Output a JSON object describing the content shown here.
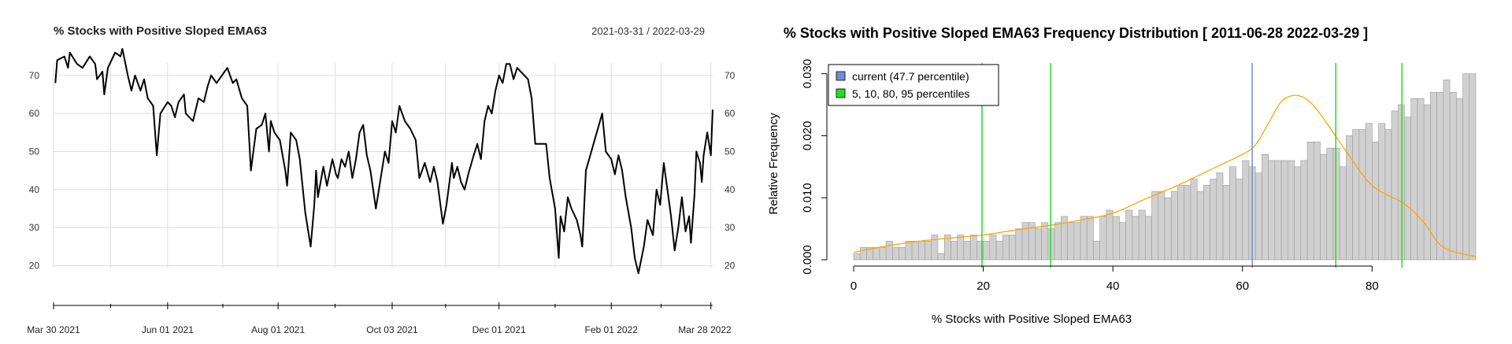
{
  "line_chart": {
    "title": "% Stocks with Positive Sloped EMA63",
    "date_range": "2021-03-31 / 2022-03-29"
  },
  "histogram": {
    "title": "% Stocks with Positive Sloped EMA63 Frequency Distribution [ 2011-06-28 2022-03-29 ]",
    "xlabel": "% Stocks with Positive Sloped EMA63",
    "ylabel": "Relative Frequency",
    "legend": [
      {
        "label": "current (47.7 percentile)",
        "color": "#6f8fd8"
      },
      {
        "label": "5, 10, 80, 95 percentiles",
        "color": "#22dd22"
      }
    ]
  },
  "colors": {
    "line": "#000000",
    "grid": "#dddddd",
    "bar_fill": "#d0d0d0",
    "bar_stroke": "#9a9a9a",
    "density": "#ffa500",
    "current": "#6f8fd8",
    "percentile": "#22dd22"
  },
  "chart_data": [
    {
      "type": "line",
      "title": "% Stocks with Positive Sloped EMA63",
      "ylim": [
        17,
        77
      ],
      "y_ticks": [
        20,
        30,
        40,
        50,
        60,
        70
      ],
      "x_ticks": [
        {
          "date": "2021-03-30",
          "label": "Mar 30 2021"
        },
        {
          "date": "2021-06-01",
          "label": "Jun 01 2021"
        },
        {
          "date": "2021-08-01",
          "label": "Aug 01 2021"
        },
        {
          "date": "2021-10-03",
          "label": "Oct 03 2021"
        },
        {
          "date": "2021-12-01",
          "label": "Dec 01 2021"
        },
        {
          "date": "2022-02-01",
          "label": "Feb 01 2022"
        },
        {
          "date": "2022-03-28",
          "label": "Mar 28 2022"
        }
      ],
      "grid": true,
      "series": [
        {
          "values": [
            {
              "x": "2021-03-31",
              "y": 68
            },
            {
              "x": "2021-04-01",
              "y": 74
            },
            {
              "x": "2021-04-05",
              "y": 75
            },
            {
              "x": "2021-04-07",
              "y": 72
            },
            {
              "x": "2021-04-08",
              "y": 76
            },
            {
              "x": "2021-04-12",
              "y": 73
            },
            {
              "x": "2021-04-15",
              "y": 72
            },
            {
              "x": "2021-04-19",
              "y": 75
            },
            {
              "x": "2021-04-22",
              "y": 73
            },
            {
              "x": "2021-04-23",
              "y": 69
            },
            {
              "x": "2021-04-26",
              "y": 71
            },
            {
              "x": "2021-04-27",
              "y": 65
            },
            {
              "x": "2021-04-29",
              "y": 72
            },
            {
              "x": "2021-05-03",
              "y": 76
            },
            {
              "x": "2021-05-06",
              "y": 75
            },
            {
              "x": "2021-05-07",
              "y": 77
            },
            {
              "x": "2021-05-10",
              "y": 70
            },
            {
              "x": "2021-05-12",
              "y": 66
            },
            {
              "x": "2021-05-14",
              "y": 70
            },
            {
              "x": "2021-05-17",
              "y": 66
            },
            {
              "x": "2021-05-19",
              "y": 69
            },
            {
              "x": "2021-05-21",
              "y": 64
            },
            {
              "x": "2021-05-24",
              "y": 62
            },
            {
              "x": "2021-05-26",
              "y": 49
            },
            {
              "x": "2021-05-28",
              "y": 60
            },
            {
              "x": "2021-06-01",
              "y": 63
            },
            {
              "x": "2021-06-03",
              "y": 62
            },
            {
              "x": "2021-06-05",
              "y": 59
            },
            {
              "x": "2021-06-07",
              "y": 63
            },
            {
              "x": "2021-06-10",
              "y": 65
            },
            {
              "x": "2021-06-11",
              "y": 60
            },
            {
              "x": "2021-06-15",
              "y": 58
            },
            {
              "x": "2021-06-18",
              "y": 64
            },
            {
              "x": "2021-06-21",
              "y": 63
            },
            {
              "x": "2021-06-23",
              "y": 67
            },
            {
              "x": "2021-06-25",
              "y": 70
            },
            {
              "x": "2021-06-28",
              "y": 68
            },
            {
              "x": "2021-07-01",
              "y": 70
            },
            {
              "x": "2021-07-04",
              "y": 72
            },
            {
              "x": "2021-07-07",
              "y": 68
            },
            {
              "x": "2021-07-09",
              "y": 69
            },
            {
              "x": "2021-07-12",
              "y": 64
            },
            {
              "x": "2021-07-15",
              "y": 62
            },
            {
              "x": "2021-07-17",
              "y": 45
            },
            {
              "x": "2021-07-20",
              "y": 56
            },
            {
              "x": "2021-07-23",
              "y": 57
            },
            {
              "x": "2021-07-25",
              "y": 60
            },
            {
              "x": "2021-07-27",
              "y": 50
            },
            {
              "x": "2021-07-28",
              "y": 58
            },
            {
              "x": "2021-07-30",
              "y": 55
            },
            {
              "x": "2021-08-02",
              "y": 53
            },
            {
              "x": "2021-08-05",
              "y": 45
            },
            {
              "x": "2021-08-06",
              "y": 41
            },
            {
              "x": "2021-08-08",
              "y": 55
            },
            {
              "x": "2021-08-11",
              "y": 53
            },
            {
              "x": "2021-08-13",
              "y": 48
            },
            {
              "x": "2021-08-16",
              "y": 34
            },
            {
              "x": "2021-08-19",
              "y": 25
            },
            {
              "x": "2021-08-21",
              "y": 36
            },
            {
              "x": "2021-08-22",
              "y": 45
            },
            {
              "x": "2021-08-23",
              "y": 38
            },
            {
              "x": "2021-08-26",
              "y": 46
            },
            {
              "x": "2021-08-28",
              "y": 41
            },
            {
              "x": "2021-08-31",
              "y": 48
            },
            {
              "x": "2021-09-02",
              "y": 44
            },
            {
              "x": "2021-09-03",
              "y": 43
            },
            {
              "x": "2021-09-05",
              "y": 48
            },
            {
              "x": "2021-09-07",
              "y": 46
            },
            {
              "x": "2021-09-09",
              "y": 50
            },
            {
              "x": "2021-09-11",
              "y": 43
            },
            {
              "x": "2021-09-13",
              "y": 48
            },
            {
              "x": "2021-09-15",
              "y": 55
            },
            {
              "x": "2021-09-17",
              "y": 57
            },
            {
              "x": "2021-09-19",
              "y": 49
            },
            {
              "x": "2021-09-21",
              "y": 45
            },
            {
              "x": "2021-09-24",
              "y": 35
            },
            {
              "x": "2021-09-26",
              "y": 41
            },
            {
              "x": "2021-09-29",
              "y": 50
            },
            {
              "x": "2021-10-01",
              "y": 47
            },
            {
              "x": "2021-10-03",
              "y": 58
            },
            {
              "x": "2021-10-05",
              "y": 55
            },
            {
              "x": "2021-10-07",
              "y": 62
            },
            {
              "x": "2021-10-10",
              "y": 58
            },
            {
              "x": "2021-10-13",
              "y": 56
            },
            {
              "x": "2021-10-16",
              "y": 53
            },
            {
              "x": "2021-10-18",
              "y": 43
            },
            {
              "x": "2021-10-21",
              "y": 47
            },
            {
              "x": "2021-10-24",
              "y": 42
            },
            {
              "x": "2021-10-26",
              "y": 46
            },
            {
              "x": "2021-10-28",
              "y": 42
            },
            {
              "x": "2021-10-31",
              "y": 31
            },
            {
              "x": "2021-11-02",
              "y": 36
            },
            {
              "x": "2021-11-05",
              "y": 47
            },
            {
              "x": "2021-11-06",
              "y": 43
            },
            {
              "x": "2021-11-08",
              "y": 46
            },
            {
              "x": "2021-11-10",
              "y": 42
            },
            {
              "x": "2021-11-12",
              "y": 40
            },
            {
              "x": "2021-11-14",
              "y": 44
            },
            {
              "x": "2021-11-17",
              "y": 49
            },
            {
              "x": "2021-11-19",
              "y": 52
            },
            {
              "x": "2021-11-21",
              "y": 48
            },
            {
              "x": "2021-11-23",
              "y": 58
            },
            {
              "x": "2021-11-25",
              "y": 62
            },
            {
              "x": "2021-11-27",
              "y": 60
            },
            {
              "x": "2021-11-29",
              "y": 66
            },
            {
              "x": "2021-12-01",
              "y": 70
            },
            {
              "x": "2021-12-03",
              "y": 68
            },
            {
              "x": "2021-12-05",
              "y": 73
            },
            {
              "x": "2021-12-07",
              "y": 73
            },
            {
              "x": "2021-12-09",
              "y": 69
            },
            {
              "x": "2021-12-11",
              "y": 72
            },
            {
              "x": "2021-12-13",
              "y": 71
            },
            {
              "x": "2021-12-17",
              "y": 69
            },
            {
              "x": "2021-12-19",
              "y": 64
            },
            {
              "x": "2021-12-21",
              "y": 52
            },
            {
              "x": "2021-12-27",
              "y": 52
            },
            {
              "x": "2021-12-29",
              "y": 43
            },
            {
              "x": "2022-01-01",
              "y": 35
            },
            {
              "x": "2022-01-03",
              "y": 22
            },
            {
              "x": "2022-01-04",
              "y": 33
            },
            {
              "x": "2022-01-06",
              "y": 29
            },
            {
              "x": "2022-01-08",
              "y": 38
            },
            {
              "x": "2022-01-10",
              "y": 35
            },
            {
              "x": "2022-01-13",
              "y": 32
            },
            {
              "x": "2022-01-15",
              "y": 28
            },
            {
              "x": "2022-01-16",
              "y": 25
            },
            {
              "x": "2022-01-18",
              "y": 45
            },
            {
              "x": "2022-01-21",
              "y": 50
            },
            {
              "x": "2022-01-24",
              "y": 55
            },
            {
              "x": "2022-01-27",
              "y": 60
            },
            {
              "x": "2022-01-29",
              "y": 50
            },
            {
              "x": "2022-02-01",
              "y": 48
            },
            {
              "x": "2022-02-03",
              "y": 44
            },
            {
              "x": "2022-02-05",
              "y": 49
            },
            {
              "x": "2022-02-07",
              "y": 45
            },
            {
              "x": "2022-02-09",
              "y": 38
            },
            {
              "x": "2022-02-12",
              "y": 30
            },
            {
              "x": "2022-02-14",
              "y": 22
            },
            {
              "x": "2022-02-16",
              "y": 18
            },
            {
              "x": "2022-02-19",
              "y": 25
            },
            {
              "x": "2022-02-21",
              "y": 32
            },
            {
              "x": "2022-02-24",
              "y": 28
            },
            {
              "x": "2022-02-26",
              "y": 40
            },
            {
              "x": "2022-02-28",
              "y": 36
            },
            {
              "x": "2022-03-02",
              "y": 47
            },
            {
              "x": "2022-03-04",
              "y": 40
            },
            {
              "x": "2022-03-06",
              "y": 33
            },
            {
              "x": "2022-03-08",
              "y": 24
            },
            {
              "x": "2022-03-10",
              "y": 30
            },
            {
              "x": "2022-03-12",
              "y": 38
            },
            {
              "x": "2022-03-14",
              "y": 29
            },
            {
              "x": "2022-03-16",
              "y": 33
            },
            {
              "x": "2022-03-17",
              "y": 26
            },
            {
              "x": "2022-03-19",
              "y": 39
            },
            {
              "x": "2022-03-20",
              "y": 50
            },
            {
              "x": "2022-03-22",
              "y": 47
            },
            {
              "x": "2022-03-23",
              "y": 42
            },
            {
              "x": "2022-03-24",
              "y": 49
            },
            {
              "x": "2022-03-26",
              "y": 55
            },
            {
              "x": "2022-03-28",
              "y": 49
            },
            {
              "x": "2022-03-29",
              "y": 61
            }
          ]
        }
      ]
    },
    {
      "type": "bar",
      "title": "% Stocks with Positive Sloped EMA63 Frequency Distribution [ 2011-06-28 2022-03-29 ]",
      "xlabel": "% Stocks with Positive Sloped EMA63",
      "ylabel": "Relative Frequency",
      "xlim": [
        0,
        96
      ],
      "ylim": [
        0,
        0.033
      ],
      "x_ticks": [
        0,
        20,
        40,
        60,
        80
      ],
      "y_ticks": [
        0.0,
        0.01,
        0.02,
        0.03
      ],
      "bin_width": 1,
      "bin_start": 0,
      "values": [
        0.001,
        0.002,
        0.002,
        0.002,
        0.002,
        0.003,
        0.002,
        0.002,
        0.003,
        0.003,
        0.003,
        0.003,
        0.004,
        0.001,
        0.004,
        0.003,
        0.004,
        0.003,
        0.004,
        0.003,
        0.003,
        0.004,
        0.003,
        0.004,
        0.004,
        0.005,
        0.006,
        0.006,
        0.005,
        0.006,
        0.005,
        0.006,
        0.007,
        0.006,
        0.006,
        0.007,
        0.007,
        0.003,
        0.007,
        0.008,
        0.007,
        0.006,
        0.008,
        0.007,
        0.008,
        0.007,
        0.011,
        0.011,
        0.01,
        0.011,
        0.012,
        0.012,
        0.013,
        0.011,
        0.012,
        0.013,
        0.014,
        0.012,
        0.015,
        0.013,
        0.016,
        0.015,
        0.014,
        0.017,
        0.016,
        0.016,
        0.016,
        0.016,
        0.015,
        0.016,
        0.019,
        0.019,
        0.017,
        0.018,
        0.018,
        0.015,
        0.02,
        0.021,
        0.021,
        0.022,
        0.019,
        0.022,
        0.021,
        0.024,
        0.025,
        0.023,
        0.026,
        0.026,
        0.025,
        0.027,
        0.027,
        0.029,
        0.027,
        0.026,
        0.03,
        0.03
      ],
      "density": [
        [
          0,
          0.0012
        ],
        [
          5,
          0.0022
        ],
        [
          10,
          0.003
        ],
        [
          15,
          0.0035
        ],
        [
          20,
          0.004
        ],
        [
          25,
          0.0048
        ],
        [
          30,
          0.0055
        ],
        [
          35,
          0.0064
        ],
        [
          40,
          0.0075
        ],
        [
          45,
          0.0098
        ],
        [
          50,
          0.012
        ],
        [
          55,
          0.0145
        ],
        [
          60,
          0.017
        ],
        [
          62,
          0.0185
        ],
        [
          64,
          0.022
        ],
        [
          66,
          0.0255
        ],
        [
          68,
          0.0265
        ],
        [
          70,
          0.0258
        ],
        [
          72,
          0.0235
        ],
        [
          76,
          0.0175
        ],
        [
          80,
          0.012
        ],
        [
          85,
          0.009
        ],
        [
          88,
          0.006
        ],
        [
          91,
          0.002
        ],
        [
          96,
          0.0005
        ]
      ],
      "current_value": 61.5,
      "percentiles": [
        19.8,
        30.4,
        74.4,
        84.6
      ]
    }
  ]
}
